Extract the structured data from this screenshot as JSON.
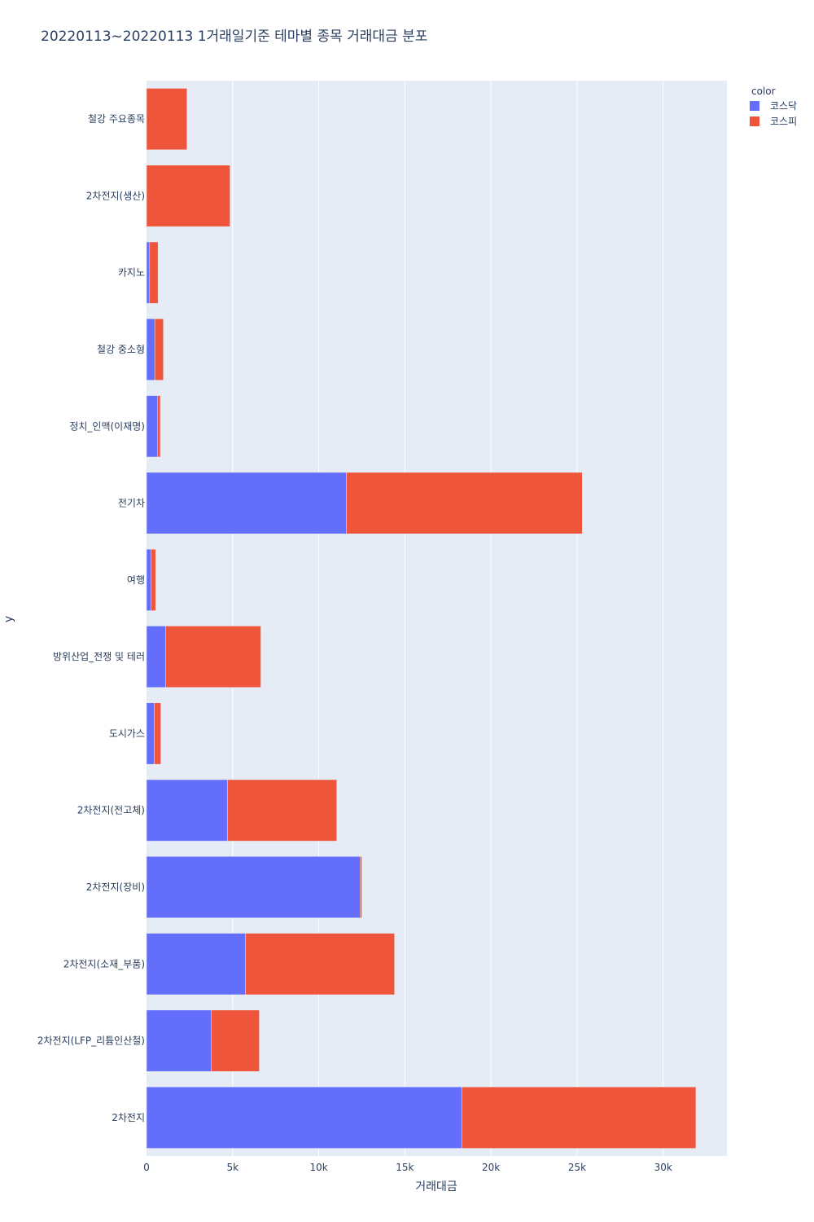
{
  "colors": {
    "plot_bg": "#e5ecf6",
    "grid": "#ffffff",
    "text": "#2a3f5f"
  },
  "chart_data": {
    "type": "bar",
    "orientation": "horizontal",
    "barmode": "stack",
    "title": "20220113~20220113 1거래일기준 테마별 종목 거래대금 분포",
    "xlabel": "거래대금",
    "ylabel": "y",
    "xlim": [
      0,
      33700
    ],
    "xticks": [
      0,
      5000,
      10000,
      15000,
      20000,
      25000,
      30000
    ],
    "xtick_labels": [
      "0",
      "5k",
      "10k",
      "15k",
      "20k",
      "25k",
      "30k"
    ],
    "grid": true,
    "legend_title": "color",
    "legend_position": "top-right",
    "categories": [
      "철강 주요종목",
      "2차전지(생산)",
      "카지노",
      "철강 중소형",
      "정치_인맥(이재명)",
      "전기차",
      "여행",
      "방위산업_전쟁 및 테러",
      "도시가스",
      "2차전지(전고체)",
      "2차전지(장비)",
      "2차전지(소재_부품)",
      "2차전지(LFP_리튬인산철)",
      "2차전지"
    ],
    "series": [
      {
        "name": "코스닥",
        "color": "#636efa",
        "values": [
          0,
          0,
          180,
          480,
          650,
          11600,
          250,
          1120,
          450,
          4700,
          12400,
          5750,
          3750,
          18300
        ]
      },
      {
        "name": "코스피",
        "color": "#ef553b",
        "values": [
          2350,
          4850,
          490,
          500,
          150,
          13700,
          280,
          5520,
          380,
          6350,
          100,
          8650,
          2800,
          13600
        ]
      }
    ]
  }
}
